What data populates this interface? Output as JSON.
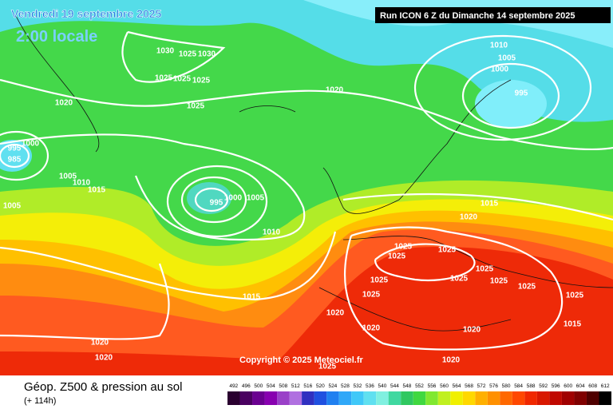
{
  "header": {
    "date": "Vendredi 19 septembre 2025",
    "time": "2:00 locale",
    "run": "Run ICON 6 Z du Dimanche 14 septembre 2025"
  },
  "isobar_labels": [
    1030,
    1025,
    1030,
    1025,
    1025,
    1025,
    1025,
    1020,
    1000,
    995,
    985,
    1005,
    1010,
    1015,
    1005,
    995,
    1000,
    1005,
    1010,
    1015,
    1020,
    1020,
    1020,
    1010,
    1005,
    1000,
    995,
    1015,
    1020,
    1025,
    1025,
    1025,
    1025,
    1025,
    1025,
    1025,
    1020,
    1020,
    1020,
    1025,
    1015,
    1020,
    1025,
    1025,
    1025
  ],
  "copyright": "Copyright © 2025 Meteociel.fr",
  "footer": {
    "title": "Géop. Z500 & pression au sol",
    "lead": "(+ 114h)"
  },
  "legend": {
    "labels": [
      492,
      496,
      500,
      504,
      508,
      512,
      516,
      520,
      524,
      528,
      532,
      536,
      540,
      544,
      548,
      552,
      556,
      560,
      564,
      568,
      572,
      576,
      580,
      584,
      588,
      592,
      596,
      600,
      604,
      608,
      612
    ],
    "colors": [
      "#2a0030",
      "#4a0060",
      "#6a0090",
      "#8800b0",
      "#9a40c8",
      "#b070e0",
      "#3030c0",
      "#2050e0",
      "#2080f0",
      "#30a8f8",
      "#40c8f8",
      "#60e0f0",
      "#80f0e0",
      "#40d8a0",
      "#30c860",
      "#40d840",
      "#80e830",
      "#c0f020",
      "#f0f000",
      "#ffd800",
      "#ffb000",
      "#ff9000",
      "#ff6800",
      "#ff4800",
      "#f02800",
      "#d81800",
      "#c00800",
      "#a00000",
      "#800000",
      "#500000",
      "#000000"
    ]
  }
}
